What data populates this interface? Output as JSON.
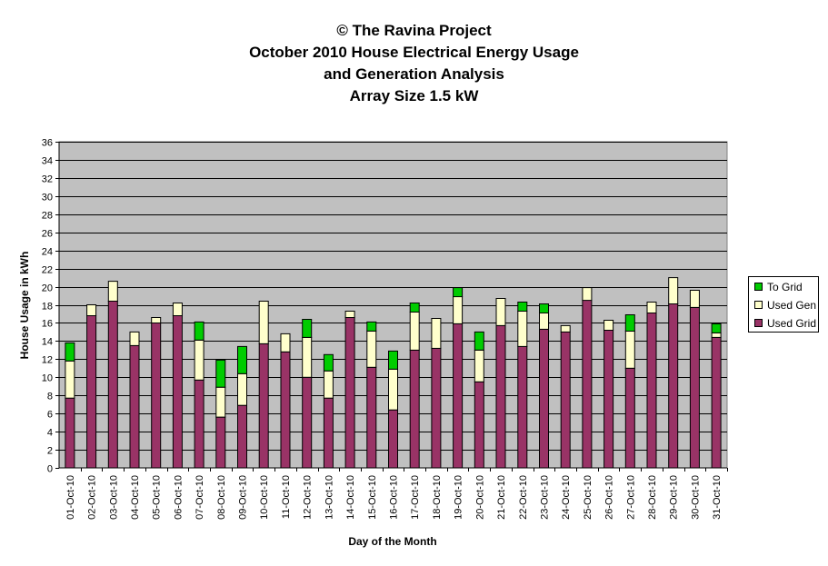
{
  "title_lines": [
    "© The Ravina Project",
    "October 2010 House Electrical Energy Usage",
    "and Generation Analysis",
    "Array Size 1.5 kW"
  ],
  "chart_data": {
    "type": "bar",
    "stacked": true,
    "xlabel": "Day of the Month",
    "ylabel": "House Usage in kWh",
    "ylim": [
      0,
      36
    ],
    "y_tick_step": 2,
    "grid": true,
    "legend_position": "right",
    "categories": [
      "01-Oct-10",
      "02-Oct-10",
      "03-Oct-10",
      "04-Oct-10",
      "05-Oct-10",
      "06-Oct-10",
      "07-Oct-10",
      "08-Oct-10",
      "09-Oct-10",
      "10-Oct-10",
      "11-Oct-10",
      "12-Oct-10",
      "13-Oct-10",
      "14-Oct-10",
      "15-Oct-10",
      "16-Oct-10",
      "17-Oct-10",
      "18-Oct-10",
      "19-Oct-10",
      "20-Oct-10",
      "21-Oct-10",
      "22-Oct-10",
      "23-Oct-10",
      "24-Oct-10",
      "25-Oct-10",
      "26-Oct-10",
      "27-Oct-10",
      "28-Oct-10",
      "29-Oct-10",
      "30-Oct-10",
      "31-Oct-10"
    ],
    "series": [
      {
        "name": "Used Grid",
        "color": "#993366",
        "values": [
          7.7,
          16.8,
          18.4,
          13.5,
          16.0,
          16.8,
          9.7,
          5.6,
          6.9,
          13.7,
          12.8,
          10.0,
          7.7,
          16.6,
          11.1,
          6.4,
          13.0,
          13.2,
          15.9,
          9.5,
          15.7,
          13.4,
          15.3,
          15.0,
          18.5,
          15.2,
          11.0,
          17.1,
          18.1,
          17.7,
          14.4
        ]
      },
      {
        "name": "Used Gen",
        "color": "#FFFFCC",
        "values": [
          4.1,
          1.2,
          2.2,
          1.5,
          0.6,
          1.4,
          4.4,
          3.3,
          3.5,
          4.7,
          2.0,
          4.4,
          3.0,
          0.7,
          4.0,
          4.5,
          4.2,
          3.3,
          3.0,
          3.5,
          3.0,
          3.9,
          1.8,
          0.7,
          1.4,
          1.1,
          4.1,
          1.2,
          2.9,
          1.9,
          0.5
        ]
      },
      {
        "name": "To Grid",
        "color": "#00CC00",
        "values": [
          2.0,
          0,
          0,
          0,
          0,
          0,
          2.0,
          3.0,
          3.0,
          0,
          0,
          2.0,
          1.8,
          0,
          1.0,
          2.0,
          1.0,
          0,
          1.0,
          2.0,
          0,
          1.0,
          1.0,
          0,
          0,
          0,
          1.8,
          0,
          0,
          0,
          1.0
        ]
      }
    ]
  }
}
